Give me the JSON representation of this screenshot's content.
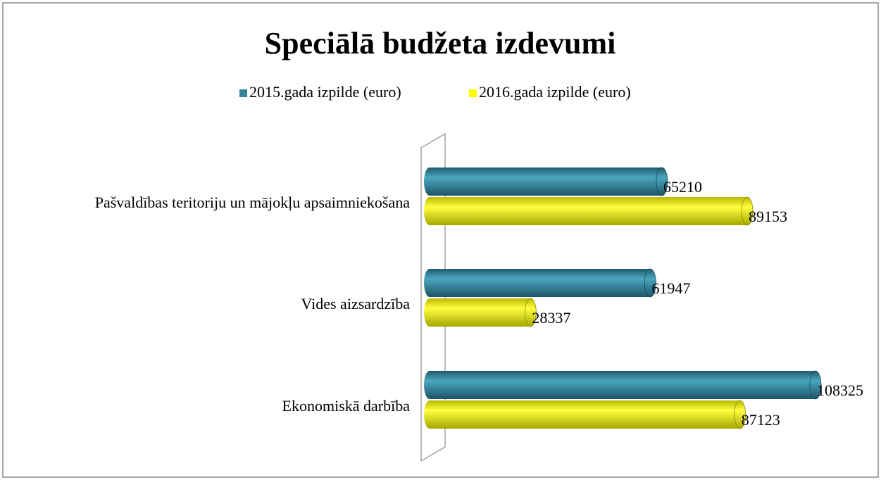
{
  "chart_data": {
    "type": "bar",
    "orientation": "horizontal",
    "title": "Speciālā budžeta izdevumi",
    "categories": [
      "Pašvaldības teritoriju un mājokļu apsaimniekošana",
      "Vides aizsardzība",
      "Ekonomiskā darbība"
    ],
    "series": [
      {
        "name": "2015.gada izpilde (euro)",
        "color": "#31859c",
        "values": [
          65210,
          61947,
          108325
        ]
      },
      {
        "name": "2016.gada izpilde (euro)",
        "color": "#ffff00",
        "values": [
          89153,
          28337,
          87123
        ]
      }
    ],
    "xlim": [
      0,
      120000
    ],
    "legend": "top"
  }
}
